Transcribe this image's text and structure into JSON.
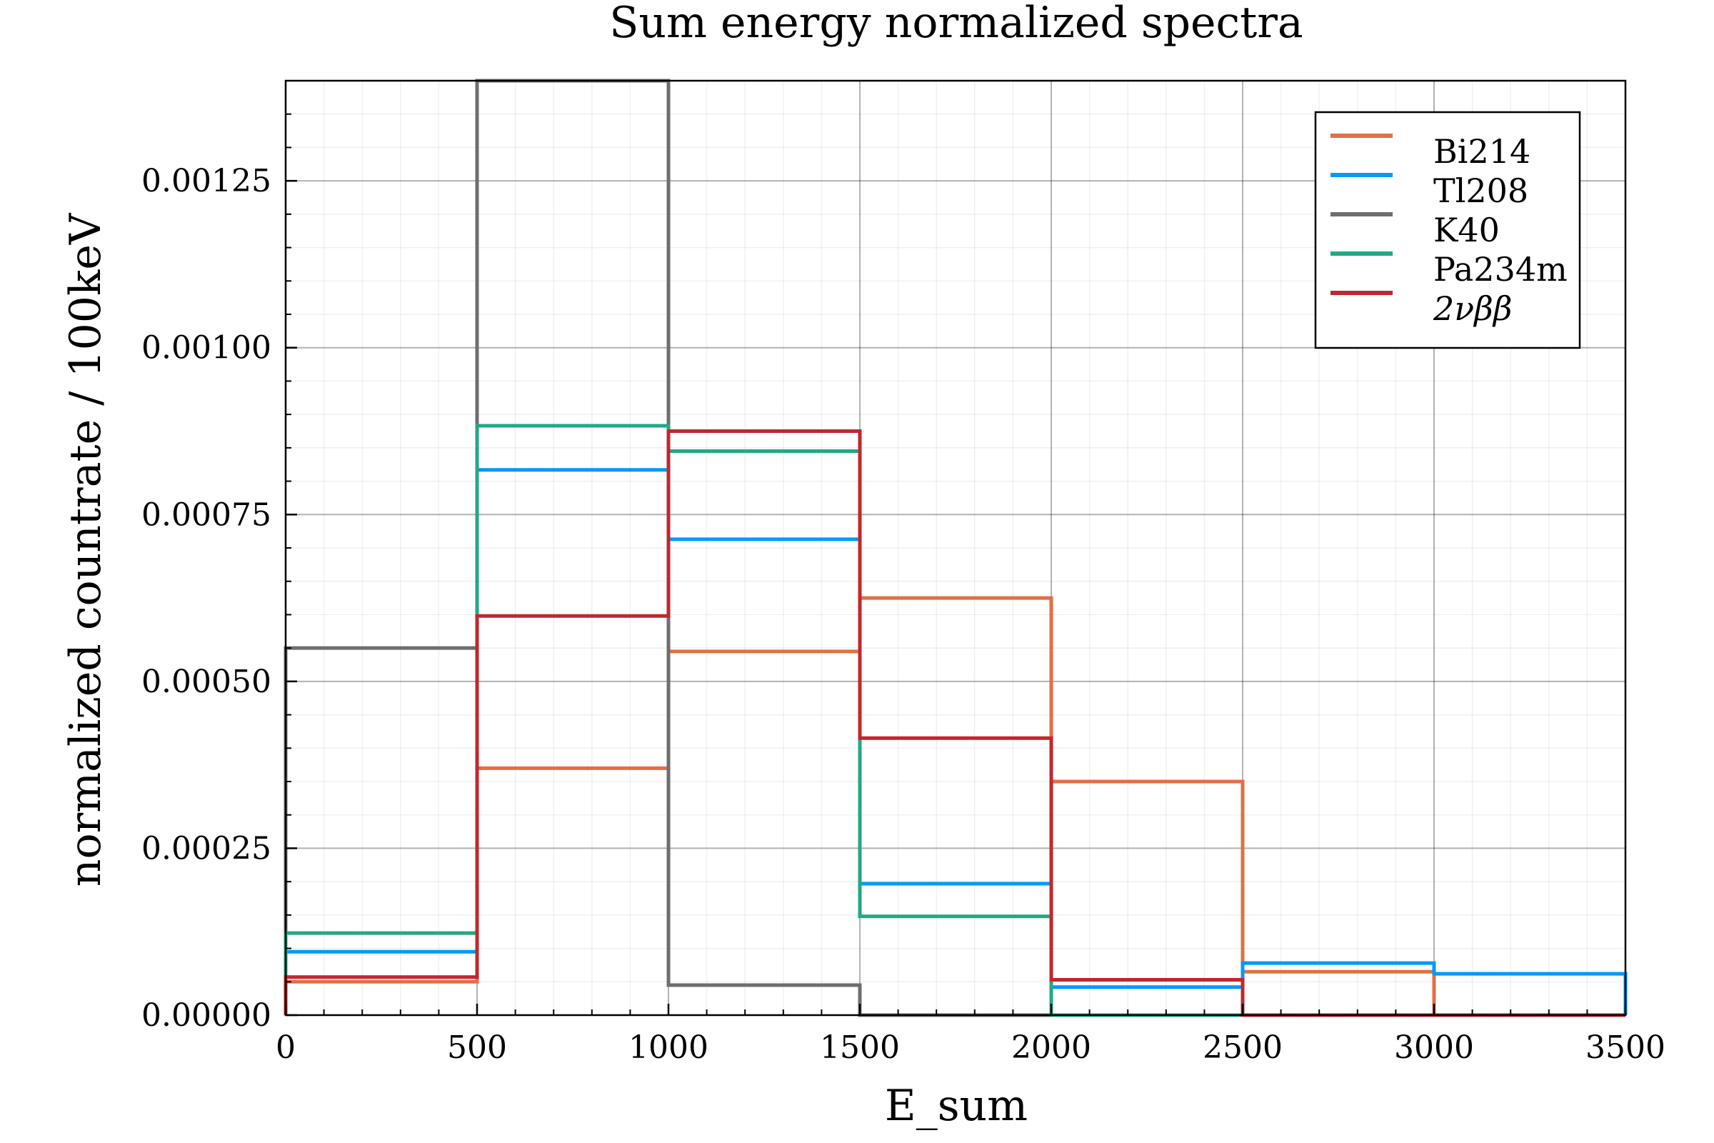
{
  "chart_data": {
    "type": "histogram",
    "title": "Sum energy normalized spectra",
    "xlabel": "E_sum",
    "ylabel": "normalized countrate / 100keV",
    "xlim": [
      0,
      3500
    ],
    "ylim": [
      0,
      0.0014
    ],
    "xticks": [
      0,
      500,
      1000,
      1500,
      2000,
      2500,
      3000,
      3500
    ],
    "xtick_labels": [
      "0",
      "500",
      "1000",
      "1500",
      "2000",
      "2500",
      "3000",
      "3500"
    ],
    "yticks": [
      0,
      0.00025,
      0.0005,
      0.00075,
      0.001,
      0.00125
    ],
    "ytick_labels": [
      "0.00000",
      "0.00025",
      "0.00050",
      "0.00075",
      "0.00100",
      "0.00125"
    ],
    "grid": true,
    "minor_grid": true,
    "legend_position": "top-right",
    "bin_edges": [
      0,
      500,
      1000,
      1500,
      2000,
      2500,
      3000,
      3500
    ],
    "series": [
      {
        "name": "Bi214",
        "color": "#e26f46",
        "values": [
          5e-05,
          0.00037,
          0.000545,
          0.000625,
          0.00035,
          6.5e-05,
          0.0
        ]
      },
      {
        "name": "Tl208",
        "color": "#009af9",
        "values": [
          9.5e-05,
          0.000817,
          0.000713,
          0.000197,
          4.2e-05,
          7.8e-05,
          6.2e-05
        ]
      },
      {
        "name": "K40",
        "color": "#6e6e6e",
        "values": [
          0.00055,
          0.0014,
          4.5e-05,
          0.0,
          0.0,
          0.0,
          0.0
        ]
      },
      {
        "name": "Pa234m",
        "color": "#22a884",
        "values": [
          0.000123,
          0.000883,
          0.000845,
          0.000148,
          0.0,
          0.0,
          0.0
        ]
      },
      {
        "name": "2νββ",
        "color": "#c1272d",
        "values": [
          5.7e-05,
          0.000598,
          0.000875,
          0.000415,
          5.3e-05,
          0.0,
          0.0
        ]
      }
    ]
  }
}
